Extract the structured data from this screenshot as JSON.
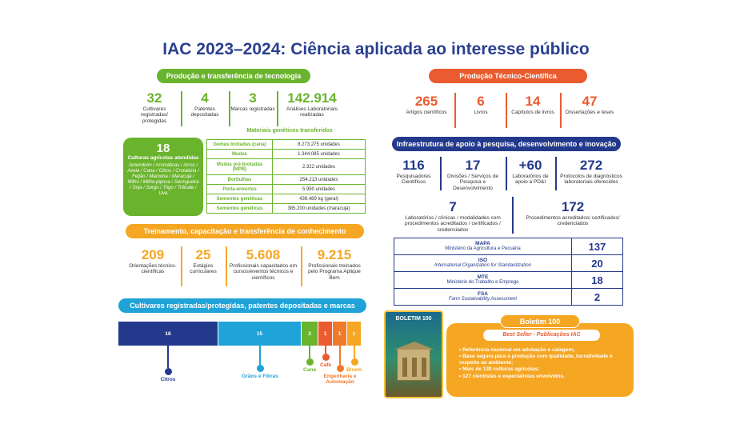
{
  "title": "IAC 2023–2024: Ciência aplicada ao interesse público",
  "producao": {
    "header": "Produção e transferência de tecnologia",
    "stats": [
      {
        "num": "32",
        "label": "Cultivares registradas/ protegidas"
      },
      {
        "num": "4",
        "label": "Patentes depositadas"
      },
      {
        "num": "3",
        "label": "Marcas registradas"
      },
      {
        "num": "142.914",
        "label": "Análises Laboratoriais realizadas"
      }
    ],
    "materiais_title": "Materiais genéticos transferidos",
    "culturas": {
      "num": "18",
      "title": "Culturas agrícolas atendidas",
      "list": "Amendoim / Aromáticas / Arroz / Aveia / Cana / Citros / Crotalária / Feijão / Mamona / Maracujá / Milho / Milho-pipoca / Seringueira / Soja / Sorgo / Trigo / Triticale / Uva"
    },
    "materiais": [
      {
        "k": "Gemas brotadas (cana)",
        "v": "8.273.275 unidades"
      },
      {
        "k": "Mudas",
        "v": "1.344.085 unidades"
      },
      {
        "k": "Mudas pré-brotadas (MPB)",
        "v": "2.322 unidades"
      },
      {
        "k": "Borbulhas",
        "v": "254.213 unidades"
      },
      {
        "k": "Porta-enxertos",
        "v": "5.990 unidades"
      },
      {
        "k": "Sementes genéticas",
        "v": "439.489 kg (geral)"
      },
      {
        "k": "Sementes genéticas",
        "v": "385.200 unidades (maracujá)"
      }
    ]
  },
  "treinamento": {
    "header": "Treinamento, capacitação e transferência de conhecimento",
    "stats": [
      {
        "num": "209",
        "label": "Orientações técnico-científicas"
      },
      {
        "num": "25",
        "label": "Estágios curriculares"
      },
      {
        "num": "5.608",
        "label": "Profissionais capacitados em cursos/eventos técnicos e científicos"
      },
      {
        "num": "9.215",
        "label": "Profissionais treinados pelo Programa Aplique Bem"
      }
    ]
  },
  "cultivares": {
    "header": "Cultivares registradas/protegidas, patentes depositadas e marcas",
    "segments": [
      {
        "value": 18,
        "label": "Citros",
        "color": "#233a8c"
      },
      {
        "value": 15,
        "label": "Grãos e Fibras",
        "color": "#1fa3d8"
      },
      {
        "value": 3,
        "label": "Cana",
        "color": "#6ab42d"
      },
      {
        "value": 1,
        "label": "Café",
        "color": "#ea5b2f"
      },
      {
        "value": 1,
        "label": "Engenharia e Automação",
        "color": "#f07a2a"
      },
      {
        "value": 1,
        "label": "Bluem",
        "color": "#f5a623"
      }
    ]
  },
  "producao_tc": {
    "header": "Produção Técnico-Científica",
    "stats": [
      {
        "num": "265",
        "label": "Artigos científicos"
      },
      {
        "num": "6",
        "label": "Livros"
      },
      {
        "num": "14",
        "label": "Capítulos de livros"
      },
      {
        "num": "47",
        "label": "Dissertações e teses"
      }
    ]
  },
  "infra": {
    "header": "Infraestrutura de apoio à pesquisa, desenvolvimento e inovação",
    "stats": [
      {
        "num": "116",
        "label": "Pesquisadores Científicos"
      },
      {
        "num": "17",
        "label": "Divisões / Serviços de Pesquisa e Desenvolvimento"
      },
      {
        "num": "+60",
        "label": "Laboratórios de apoio à PD&I"
      },
      {
        "num": "272",
        "label": "Protocolos de diagnósticos laboratoriais oferecidos"
      }
    ],
    "stats2": [
      {
        "num": "7",
        "label": "Laboratórios / clínicas / modalidades com procedimentos acreditados / certificados / credenciados"
      },
      {
        "num": "172",
        "label": "Procedimentos acreditados/ certificados/ credenciados"
      }
    ],
    "certs": [
      {
        "k": "MAPA",
        "d": "Ministério da Agricultura e Pecuária",
        "v": "137"
      },
      {
        "k": "ISO",
        "d": "International Organization for Standardization",
        "v": "20"
      },
      {
        "k": "MTE",
        "d": "Ministério do Trabalho e Emprego",
        "v": "18"
      },
      {
        "k": "FSA",
        "d": "Farm Sustainability Assessment",
        "v": "2"
      }
    ]
  },
  "boletim": {
    "cover_title": "BOLETIM 100",
    "header": "Boletim 100",
    "subheader": "Best Seller - Publicações IAC",
    "bullets": [
      "Referência nacional em adubação e calagem;",
      "Base segura para a produção com qualidade, lucratividade e respeito ao ambiente;",
      "Mais de 130 culturas agrícolas;",
      "127 cientistas e especialistas envolvidos."
    ]
  }
}
